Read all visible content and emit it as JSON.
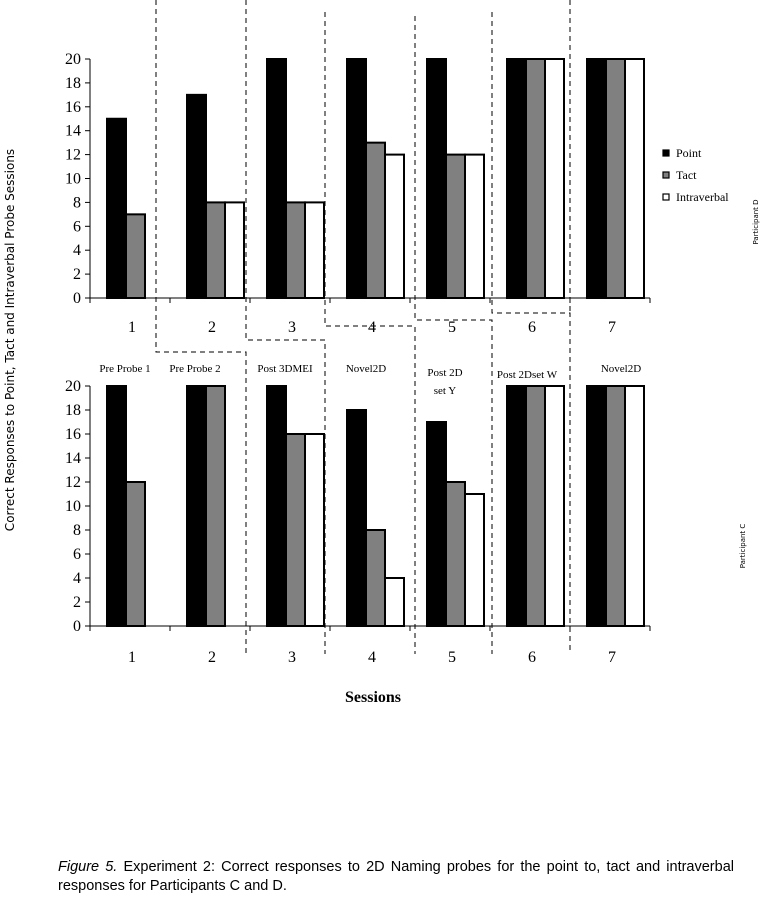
{
  "chart_data": [
    {
      "type": "bar",
      "panel": "Participant D",
      "categories": [
        "1",
        "2",
        "3",
        "4",
        "5",
        "6",
        "7"
      ],
      "series": [
        {
          "name": "Point",
          "values": [
            15,
            17,
            20,
            20,
            20,
            20,
            20
          ],
          "color": "#000000"
        },
        {
          "name": "Tact",
          "values": [
            7,
            8,
            8,
            13,
            12,
            20,
            20
          ],
          "color": "#808080"
        },
        {
          "name": "Intraverbal",
          "values": [
            0,
            8,
            8,
            12,
            12,
            20,
            20
          ],
          "color": "#ffffff"
        }
      ],
      "ylim": [
        0,
        20
      ],
      "yticks": [
        0,
        2,
        4,
        6,
        8,
        10,
        12,
        14,
        16,
        18,
        20
      ],
      "legend": [
        "Point",
        "Tact",
        "Intraverbal"
      ],
      "legend_position": "right",
      "side_label": "Participant D"
    },
    {
      "type": "bar",
      "panel": "Participant C",
      "categories": [
        "1",
        "2",
        "3",
        "4",
        "5",
        "6",
        "7"
      ],
      "series": [
        {
          "name": "Point",
          "values": [
            20,
            20,
            20,
            18,
            17,
            20,
            20
          ],
          "color": "#000000"
        },
        {
          "name": "Tact",
          "values": [
            12,
            20,
            16,
            8,
            12,
            20,
            20
          ],
          "color": "#808080"
        },
        {
          "name": "Intraverbal",
          "values": [
            0,
            0,
            16,
            4,
            11,
            20,
            20
          ],
          "color": "#ffffff"
        }
      ],
      "ylim": [
        0,
        20
      ],
      "yticks": [
        0,
        2,
        4,
        6,
        8,
        10,
        12,
        14,
        16,
        18,
        20
      ],
      "phase_labels": [
        "Pre Probe 1",
        "Pre Probe 2",
        "Post 3DMEI",
        "Novel2D",
        "Post 2D set Y",
        "Post 2Dset W",
        "Novel2D"
      ],
      "side_label": "Participant C"
    }
  ],
  "ylabel": "Correct Responses to Point, Tact and Intraverbal Probe Sessions",
  "xlabel": "Sessions",
  "caption": {
    "label": "Figure 5.",
    "text": " Experiment 2: Correct responses to 2D Naming probes for the point to, tact and intraverbal responses for Participants C and D."
  }
}
